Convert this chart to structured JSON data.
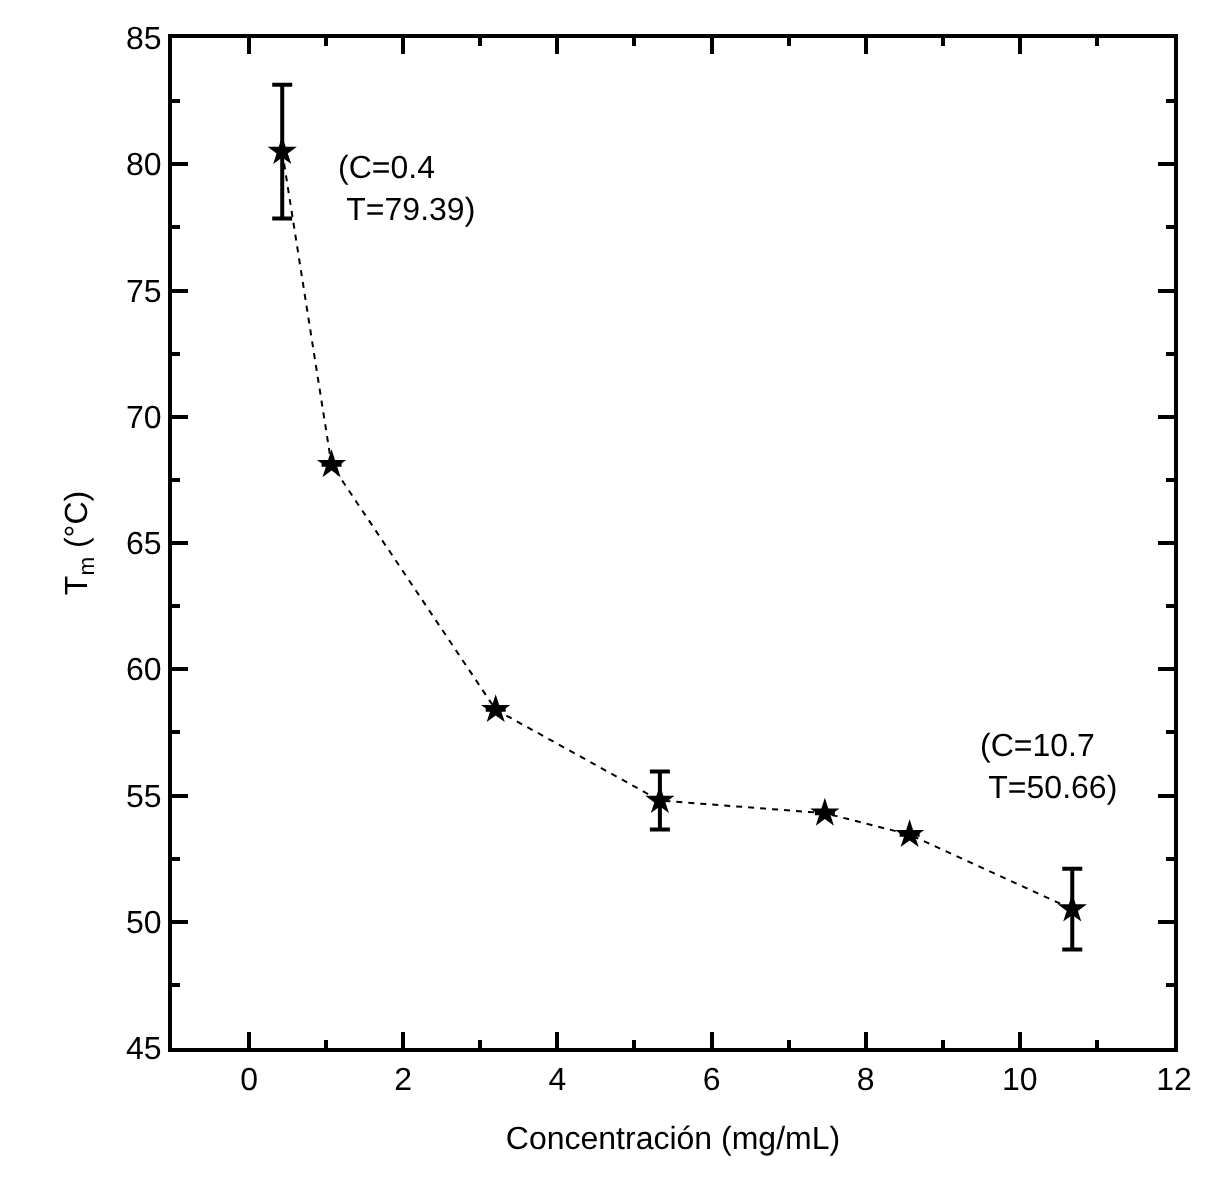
{
  "chart_data": {
    "type": "line",
    "xlabel": "Concentración (mg/mL)",
    "ylabel": "T$_{m}$ (°C)",
    "x": [
      0.43,
      1.07,
      3.2,
      5.33,
      7.47,
      8.57,
      10.68
    ],
    "series": [
      {
        "color": "#000000",
        "values": [
          80.5,
          68.1,
          58.4,
          54.8,
          54.3,
          53.45,
          50.5
        ],
        "errors": [
          2.65,
          null,
          null,
          1.15,
          null,
          null,
          1.6
        ]
      }
    ],
    "xlim": [
      -1,
      12
    ],
    "xticks": [
      0,
      2,
      4,
      6,
      8,
      10,
      12
    ],
    "ylim": [
      45,
      85
    ],
    "yticks": [
      45,
      50,
      55,
      60,
      65,
      70,
      75,
      80,
      85
    ],
    "marker": "star",
    "line_style": "dotted",
    "annotations": [
      "(C=0.4\n T=79.39)",
      "(C=10.7\n T=50.66)"
    ]
  }
}
